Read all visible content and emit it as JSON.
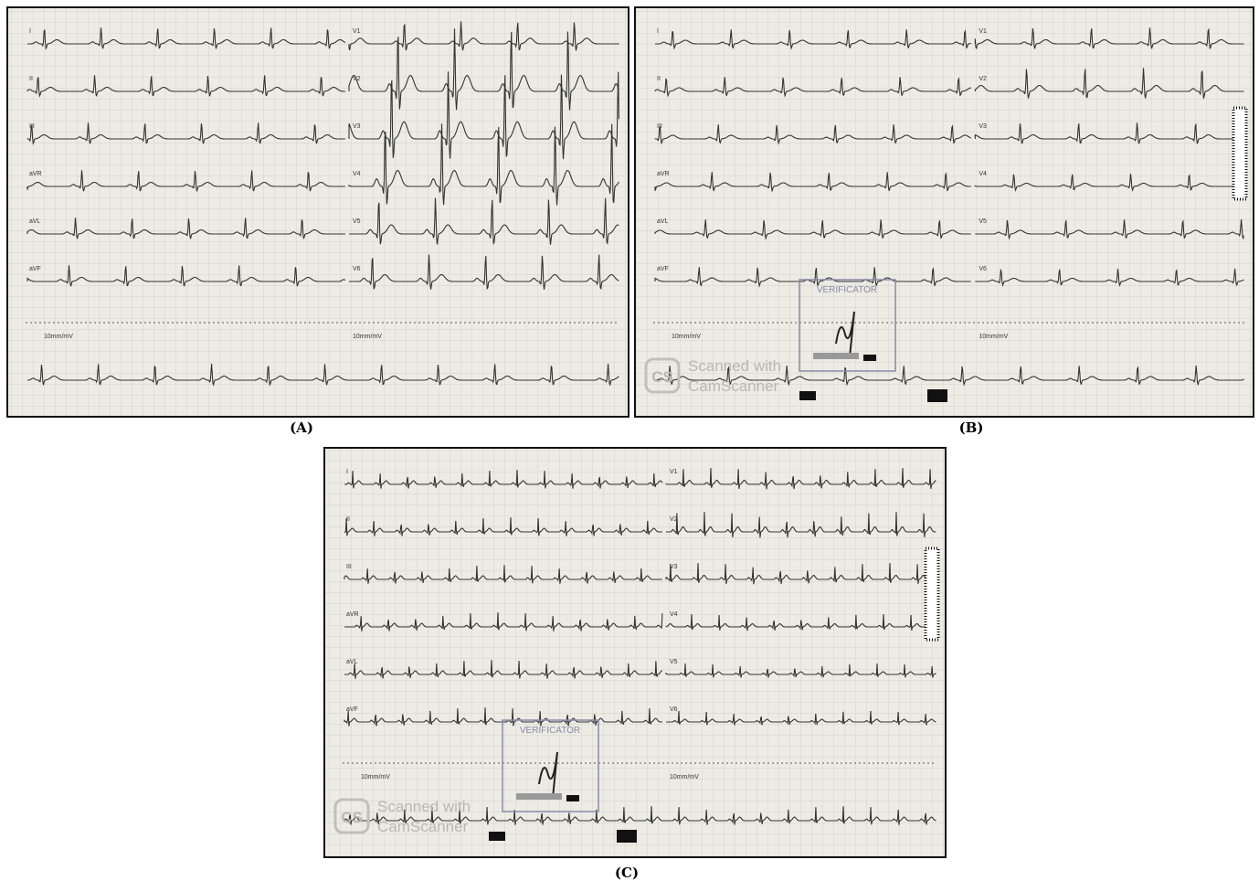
{
  "panels": [
    {
      "label": "(A)",
      "leads_left": [
        "I",
        "II",
        "III",
        "aVR",
        "aVL",
        "aVF"
      ],
      "leads_right": [
        "V1",
        "V2",
        "V3",
        "V4",
        "V5",
        "V6"
      ],
      "calibration": "10mm/mV"
    },
    {
      "label": "(B)",
      "leads_left": [
        "I",
        "II",
        "III",
        "aVR",
        "aVL",
        "aVF"
      ],
      "leads_right": [
        "V1",
        "V2",
        "V3",
        "V4",
        "V5",
        "V6"
      ],
      "calibration": "10mm/mV",
      "stamp": "VERIFICATOR",
      "logo": "CS",
      "watermark": [
        "Scanned with",
        "CamScanner"
      ]
    },
    {
      "label": "(C)",
      "leads_left": [
        "I",
        "II",
        "III",
        "aVR",
        "aVL",
        "aVF"
      ],
      "leads_right": [
        "V1",
        "V2",
        "V3",
        "V4",
        "V5",
        "V6"
      ],
      "calibration": "10mm/mV",
      "stamp": "VERIFICATOR",
      "logo": "CS",
      "watermark": [
        "Scanned with",
        "CamScanner"
      ]
    }
  ]
}
